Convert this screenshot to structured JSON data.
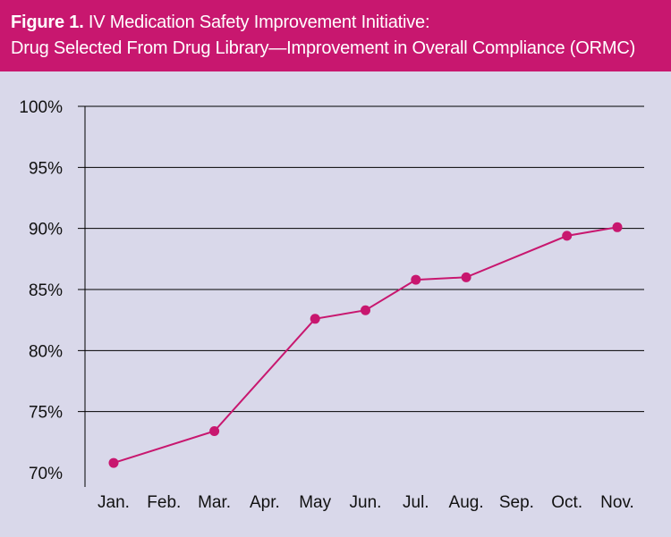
{
  "header": {
    "figure_label": "Figure 1.",
    "title_line1": "IV Medication Safety Improvement Initiative:",
    "title_line2": "Drug Selected From Drug Library—Improvement in Overall Compliance (ORMC)"
  },
  "chart_data": {
    "type": "line",
    "categories": [
      "Jan.",
      "Feb.",
      "Mar.",
      "Apr.",
      "May",
      "Jun.",
      "Jul.",
      "Aug.",
      "Sep.",
      "Oct.",
      "Nov."
    ],
    "series": [
      {
        "values": [
          70.8,
          null,
          73.4,
          null,
          82.6,
          83.3,
          85.8,
          86.0,
          null,
          89.4,
          90.1
        ],
        "color": "#c8176f"
      }
    ],
    "y_tick_labels": [
      "70%",
      "75%",
      "80%",
      "85%",
      "90%",
      "95%",
      "100%"
    ],
    "y_ticks": [
      70,
      75,
      80,
      85,
      90,
      95,
      100
    ],
    "ylim": [
      70,
      100
    ],
    "grid": "horizontal",
    "legend": "none",
    "colors": {
      "header_background": "#c8176f",
      "plot_background": "#d9d8ea",
      "line": "#c8176f",
      "gridline": "#000000",
      "text": "#111111"
    }
  }
}
